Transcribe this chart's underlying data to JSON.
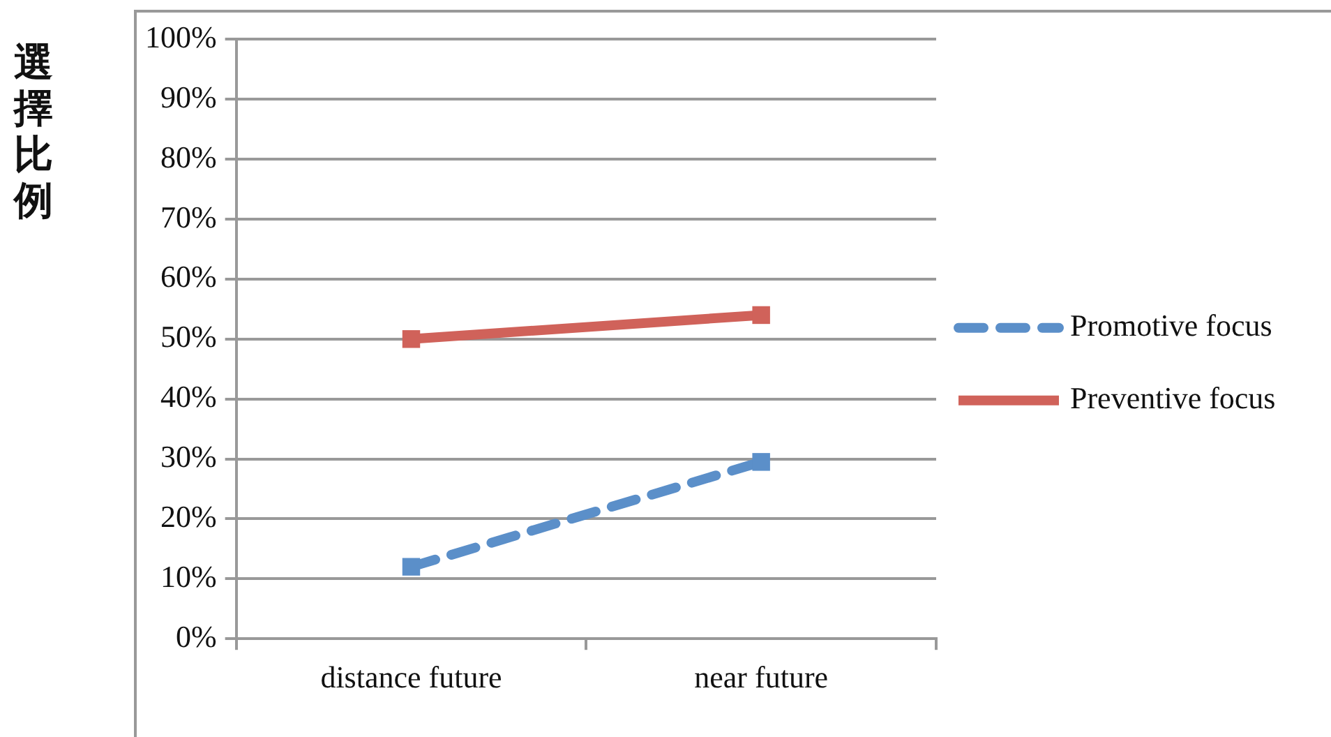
{
  "chart_data": {
    "type": "line",
    "ylabel": "選擇比例",
    "categories": [
      "distance future",
      "near future"
    ],
    "series": [
      {
        "name": "Promotive focus",
        "color": "#5b8fc9",
        "line_style": "dashed",
        "values": [
          12,
          29.5
        ]
      },
      {
        "name": "Preventive focus",
        "color": "#d0625a",
        "line_style": "solid",
        "values": [
          50,
          54
        ]
      }
    ],
    "ylim": [
      0,
      100
    ],
    "yticks": [
      {
        "value": 0,
        "label": "0%"
      },
      {
        "value": 10,
        "label": "10%"
      },
      {
        "value": 20,
        "label": "20%"
      },
      {
        "value": 30,
        "label": "30%"
      },
      {
        "value": 40,
        "label": "40%"
      },
      {
        "value": 50,
        "label": "50%"
      },
      {
        "value": 60,
        "label": "60%"
      },
      {
        "value": 70,
        "label": "70%"
      },
      {
        "value": 80,
        "label": "80%"
      },
      {
        "value": 90,
        "label": "90%"
      },
      {
        "value": 100,
        "label": "100%"
      }
    ],
    "grid": "y",
    "legend": "right",
    "marker": "square"
  }
}
